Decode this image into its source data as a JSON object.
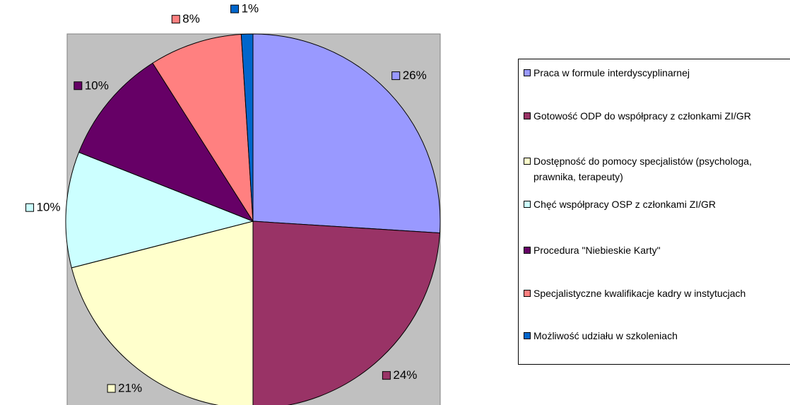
{
  "chart_data": {
    "type": "pie",
    "categories": [
      "Praca w formule interdyscyplinarnej",
      "Gotowość ODP do współpracy z członkami ZI/GR",
      "Dostępność do pomocy specjalistów (psychologa, prawnika, terapeuty)",
      "Chęć współpracy OSP z członkami ZI/GR",
      "Procedura \"Niebieskie Karty\"",
      "Specjalistyczne kwalifikacje kadry w instytucjach",
      "Możliwość udziału w szkoleniach"
    ],
    "values": [
      26,
      24,
      21,
      10,
      10,
      8,
      1
    ],
    "value_labels": [
      "26%",
      "24%",
      "21%",
      "10%",
      "10%",
      "8%",
      "1%"
    ],
    "colors": [
      "#9999FF",
      "#993366",
      "#FFFFCC",
      "#CCFFFF",
      "#660066",
      "#FF8080",
      "#0066CC"
    ],
    "legend": "right"
  }
}
